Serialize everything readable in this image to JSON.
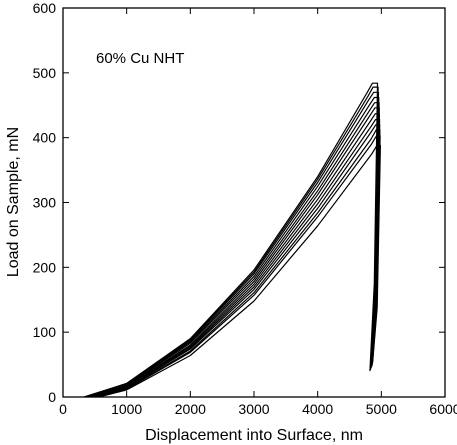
{
  "chart_data": {
    "type": "line",
    "title": "",
    "annotation": "60% Cu NHT",
    "xlabel": "Displacement into Surface, nm",
    "ylabel": "Load on Sample, mN",
    "xlim": [
      0,
      6000
    ],
    "ylim": [
      0,
      600
    ],
    "xticks": [
      "0",
      "1000",
      "2000",
      "3000",
      "4000",
      "5000",
      "6000"
    ],
    "yticks": [
      "0",
      "100",
      "200",
      "300",
      "400",
      "500",
      "600"
    ],
    "grid": false,
    "legend": "none",
    "line_color": "#000000",
    "series": [
      {
        "x": [
          330,
          1000,
          2000,
          3000,
          4000,
          4780,
          4860,
          4940,
          4890,
          4820
        ],
        "y": [
          0,
          21,
          90,
          196,
          340,
          470,
          484,
          484,
          175,
          40
        ]
      },
      {
        "x": [
          350,
          1000,
          2000,
          3000,
          4000,
          4790,
          4870,
          4950,
          4900,
          4830
        ],
        "y": [
          0,
          21,
          89,
          193,
          336,
          464,
          478,
          478,
          170,
          42
        ]
      },
      {
        "x": [
          370,
          1000,
          2000,
          3000,
          4000,
          4800,
          4880,
          4955,
          4905,
          4835
        ],
        "y": [
          0,
          20,
          87,
          190,
          331,
          458,
          470,
          470,
          168,
          44
        ]
      },
      {
        "x": [
          390,
          1000,
          2000,
          3000,
          4000,
          4810,
          4890,
          4960,
          4910,
          4840
        ],
        "y": [
          0,
          19,
          85,
          186,
          325,
          450,
          462,
          462,
          165,
          45
        ]
      },
      {
        "x": [
          410,
          1000,
          2000,
          3000,
          4000,
          4815,
          4895,
          4965,
          4915,
          4845
        ],
        "y": [
          0,
          18,
          83,
          182,
          318,
          442,
          454,
          454,
          160,
          46
        ]
      },
      {
        "x": [
          430,
          1000,
          2000,
          3000,
          4000,
          4820,
          4900,
          4968,
          4918,
          4850
        ],
        "y": [
          0,
          17,
          80,
          178,
          312,
          434,
          446,
          446,
          158,
          47
        ]
      },
      {
        "x": [
          450,
          1000,
          2000,
          3000,
          4000,
          4825,
          4905,
          4970,
          4920,
          4852
        ],
        "y": [
          0,
          16,
          78,
          174,
          305,
          425,
          437,
          437,
          155,
          48
        ]
      },
      {
        "x": [
          470,
          1000,
          2000,
          3000,
          4000,
          4830,
          4910,
          4972,
          4922,
          4855
        ],
        "y": [
          0,
          15,
          76,
          170,
          298,
          416,
          428,
          428,
          150,
          49
        ]
      },
      {
        "x": [
          490,
          1000,
          2000,
          3000,
          4000,
          4835,
          4915,
          4975,
          4925,
          4858
        ],
        "y": [
          0,
          14,
          74,
          166,
          291,
          408,
          420,
          420,
          148,
          50
        ]
      },
      {
        "x": [
          510,
          1000,
          2000,
          3000,
          4000,
          4840,
          4920,
          4978,
          4928,
          4860
        ],
        "y": [
          0,
          13,
          71,
          161,
          284,
          398,
          412,
          412,
          145,
          52
        ]
      },
      {
        "x": [
          530,
          1000,
          2000,
          3000,
          4000,
          4845,
          4925,
          4980,
          4930,
          4862
        ],
        "y": [
          0,
          12,
          69,
          157,
          278,
          390,
          403,
          403,
          142,
          53
        ]
      },
      {
        "x": [
          560,
          1000,
          2000,
          3000,
          4000,
          4850,
          4930,
          4985,
          4935,
          4865
        ],
        "y": [
          0,
          11,
          64,
          148,
          264,
          375,
          388,
          388,
          138,
          55
        ]
      }
    ]
  }
}
